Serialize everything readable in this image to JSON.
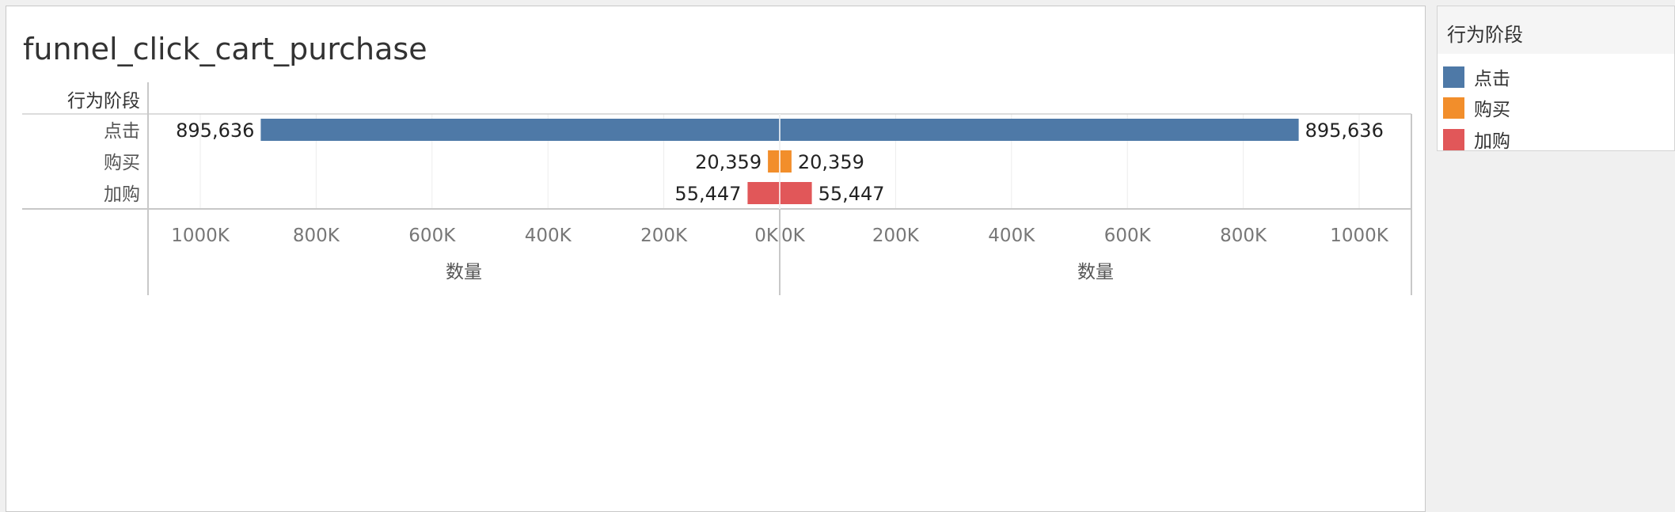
{
  "title": "funnel_click_cart_purchase",
  "chart_data": {
    "type": "bar",
    "orientation": "horizontal",
    "layout": "butterfly (mirrored axes)",
    "title": "funnel_click_cart_purchase",
    "row_header": "行为阶段",
    "categories": [
      "点击",
      "购买",
      "加购"
    ],
    "values": [
      895636,
      20359,
      55447
    ],
    "data_labels": [
      "895,636",
      "20,359",
      "55,447"
    ],
    "colors": [
      "#4e79a7",
      "#f28e2b",
      "#e15759"
    ],
    "left_axis": {
      "label": "数量",
      "reversed": true,
      "range": [
        0,
        1000000
      ],
      "ticks": [
        1000000,
        800000,
        600000,
        400000,
        200000,
        0
      ],
      "tick_labels": [
        "1000K",
        "800K",
        "600K",
        "400K",
        "200K",
        "0K"
      ]
    },
    "right_axis": {
      "label": "数量",
      "reversed": false,
      "range": [
        0,
        1000000
      ],
      "ticks": [
        0,
        200000,
        400000,
        600000,
        800000,
        1000000
      ],
      "tick_labels": [
        "0K",
        "200K",
        "400K",
        "600K",
        "800K",
        "1000K"
      ]
    },
    "grid": true
  },
  "legend": {
    "title": "行为阶段",
    "items": [
      {
        "label": "点击",
        "color": "#4e79a7"
      },
      {
        "label": "购买",
        "color": "#f28e2b"
      },
      {
        "label": "加购",
        "color": "#e15759"
      }
    ]
  }
}
